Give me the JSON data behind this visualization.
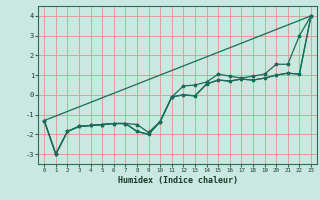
{
  "xlabel": "Humidex (Indice chaleur)",
  "xlim": [
    -0.5,
    23.5
  ],
  "ylim": [
    -3.5,
    4.5
  ],
  "xticks": [
    0,
    1,
    2,
    3,
    4,
    5,
    6,
    7,
    8,
    9,
    10,
    11,
    12,
    13,
    14,
    15,
    16,
    17,
    18,
    19,
    20,
    21,
    22,
    23
  ],
  "yticks": [
    -3,
    -2,
    -1,
    0,
    1,
    2,
    3,
    4
  ],
  "background_color": "#c8e8e0",
  "grid_color": "#e89090",
  "line_color": "#1a6b5a",
  "line1_x": [
    0,
    1,
    2,
    3,
    4,
    5,
    6,
    7,
    8,
    9,
    10,
    11,
    12,
    13,
    14,
    15,
    16,
    17,
    18,
    19,
    20,
    21,
    22,
    23
  ],
  "line1_y": [
    -1.3,
    -3.0,
    -1.85,
    -1.6,
    -1.55,
    -1.5,
    -1.45,
    -1.45,
    -1.5,
    -1.9,
    -1.35,
    -0.1,
    0.45,
    0.5,
    0.65,
    1.05,
    0.95,
    0.85,
    0.95,
    1.05,
    1.55,
    1.55,
    3.0,
    4.0
  ],
  "line2_x": [
    0,
    1,
    2,
    3,
    4,
    5,
    6,
    7,
    8,
    9,
    10,
    11,
    12,
    13,
    14,
    15,
    16,
    17,
    18,
    19,
    20,
    21,
    22,
    23
  ],
  "line2_y": [
    -1.3,
    -3.0,
    -1.85,
    -1.6,
    -1.55,
    -1.5,
    -1.45,
    -1.45,
    -1.85,
    -2.0,
    -1.35,
    -0.1,
    0.0,
    -0.05,
    0.55,
    0.75,
    0.7,
    0.8,
    0.75,
    0.85,
    1.0,
    1.1,
    1.05,
    4.0
  ],
  "line3_x": [
    0,
    1,
    2,
    3,
    4,
    5,
    6,
    7,
    8,
    9,
    10,
    11,
    12,
    13,
    14,
    15,
    16,
    17,
    18,
    19,
    20,
    21,
    22,
    23
  ],
  "line3_y": [
    -1.3,
    -3.0,
    -1.85,
    -1.6,
    -1.55,
    -1.5,
    -1.45,
    -1.45,
    -1.85,
    -2.0,
    -1.35,
    -0.1,
    0.0,
    -0.05,
    0.55,
    0.75,
    0.7,
    0.8,
    0.75,
    0.85,
    1.0,
    1.1,
    1.05,
    4.0
  ],
  "line4_x": [
    0,
    23
  ],
  "line4_y": [
    -1.3,
    4.0
  ]
}
